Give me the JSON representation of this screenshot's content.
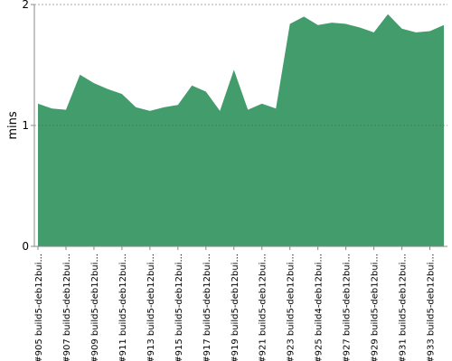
{
  "chart_data": {
    "type": "area",
    "y_label": "mins",
    "categories": [
      "#905 build5-deb12bui...",
      null,
      "#907 build5-deb12bui...",
      null,
      "#909 build5-deb12bui...",
      null,
      "#911 build5-deb12bui...",
      null,
      "#913 build5-deb12bui...",
      null,
      "#915 build5-deb12bui...",
      null,
      "#917 build5-deb12bui...",
      null,
      "#919 build5-deb12bui...",
      null,
      "#921 build5-deb12bui...",
      null,
      "#923 build5-deb12bui...",
      null,
      "#925 build4-deb12bui...",
      null,
      "#927 build5-deb12bui...",
      null,
      "#929 build5-deb12bui...",
      null,
      "#931 build5-deb12bui...",
      null,
      "#933 build5-deb12bui...",
      null
    ],
    "values": [
      1.18,
      1.14,
      1.13,
      1.42,
      1.35,
      1.3,
      1.26,
      1.15,
      1.12,
      1.15,
      1.17,
      1.33,
      1.28,
      1.12,
      1.46,
      1.13,
      1.18,
      1.14,
      1.84,
      1.9,
      1.83,
      1.85,
      1.84,
      1.81,
      1.77,
      1.92,
      1.8,
      1.77,
      1.78,
      1.83
    ],
    "color": "#439c6c",
    "ylim": [
      0,
      2
    ],
    "yticks": [
      0,
      1,
      2
    ],
    "grid": true
  }
}
